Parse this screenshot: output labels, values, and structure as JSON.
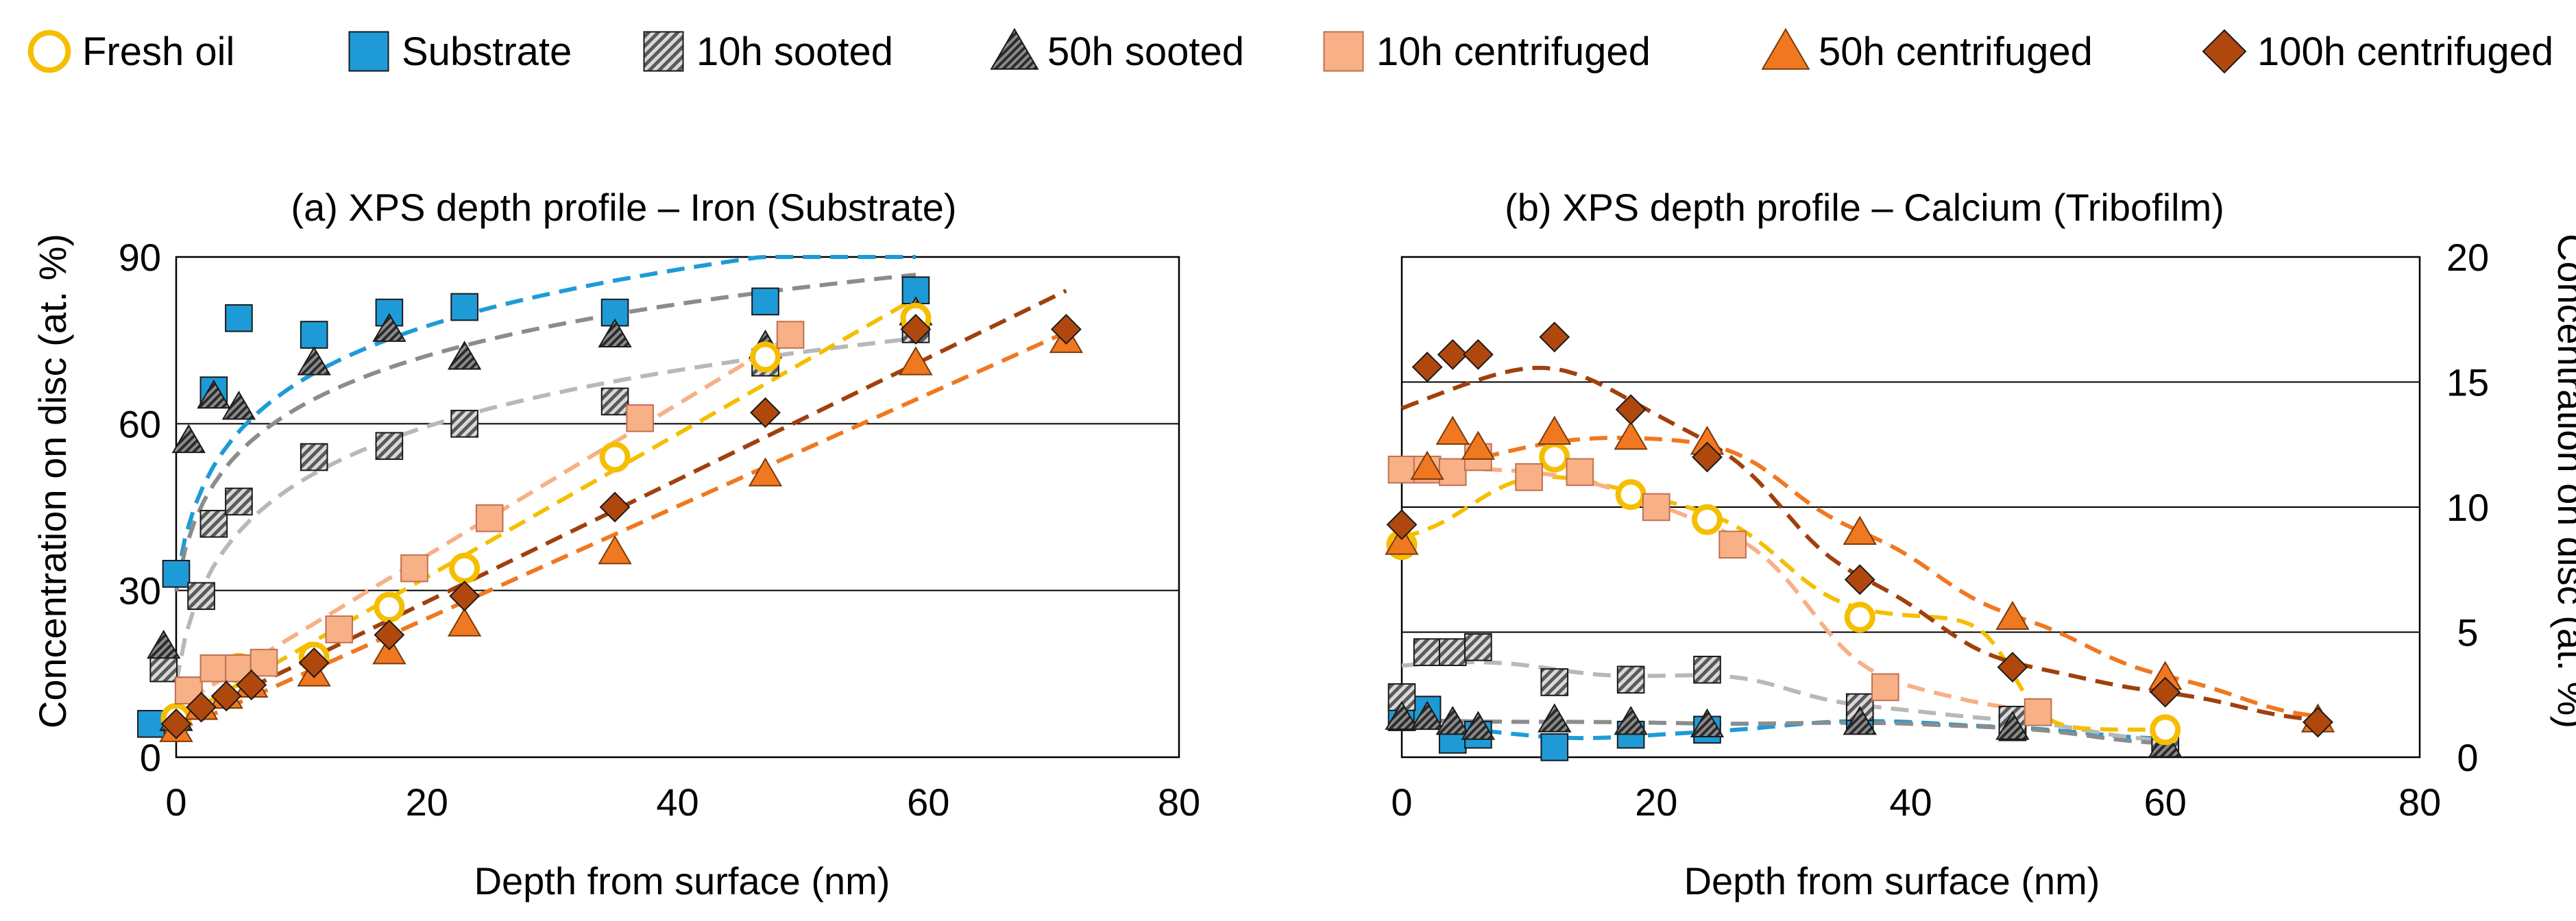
{
  "legend": [
    {
      "key": "fresh",
      "label": "Fresh oil"
    },
    {
      "key": "substrate",
      "label": "Substrate"
    },
    {
      "key": "s10",
      "label": "10h sooted"
    },
    {
      "key": "s50",
      "label": "50h sooted"
    },
    {
      "key": "c10",
      "label": "10h centrifuged"
    },
    {
      "key": "c50",
      "label": "50h centrifuged"
    },
    {
      "key": "c100",
      "label": "100h centrifuged"
    }
  ],
  "colors": {
    "fresh": "#F5BE00",
    "substrate": "#1E9BD7",
    "s10": "#6E6E6E",
    "s50": "#3C3C3C",
    "c10": "#F8B086",
    "c50": "#F07820",
    "c100": "#B0480E",
    "fit_substrate": "#1E9BD7",
    "fit_s10": "#B8B8B8",
    "fit_s50": "#8C8C8C",
    "fit_fresh": "#F5BE00",
    "fit_c10": "#F8B086",
    "fit_c50": "#F07820",
    "fit_c100": "#A0400C"
  },
  "chart_data": [
    {
      "type": "scatter",
      "title": "(a) XPS depth profile – Iron (Substrate)",
      "xlabel": "Depth from surface (nm)",
      "ylabel": "Concentration on disc (at. %)",
      "xlim": [
        0,
        80
      ],
      "ylim": [
        0,
        90
      ],
      "xticks": [
        "0",
        "20",
        "40",
        "60",
        "80"
      ],
      "yticks": [
        "0",
        "30",
        "60",
        "90"
      ],
      "grid": "horizontal",
      "series": [
        {
          "key": "substrate",
          "name": "Substrate",
          "points": [
            [
              -2,
              6
            ],
            [
              0,
              33
            ],
            [
              3,
              66
            ],
            [
              5,
              79
            ],
            [
              11,
              76
            ],
            [
              17,
              80
            ],
            [
              23,
              81
            ],
            [
              35,
              80
            ],
            [
              47,
              82
            ],
            [
              59,
              84
            ]
          ]
        },
        {
          "key": "s10",
          "name": "10h sooted",
          "points": [
            [
              -1,
              16
            ],
            [
              1,
              12
            ],
            [
              2,
              29
            ],
            [
              3,
              42
            ],
            [
              5,
              46
            ],
            [
              11,
              54
            ],
            [
              17,
              56
            ],
            [
              23,
              60
            ],
            [
              35,
              64
            ],
            [
              47,
              71
            ],
            [
              59,
              77
            ]
          ]
        },
        {
          "key": "s50",
          "name": "50h sooted",
          "points": [
            [
              -1,
              20
            ],
            [
              0,
              7
            ],
            [
              1,
              57
            ],
            [
              3,
              65
            ],
            [
              5,
              63
            ],
            [
              11,
              71
            ],
            [
              17,
              77
            ],
            [
              23,
              72
            ],
            [
              35,
              76
            ],
            [
              47,
              74
            ],
            [
              59,
              80
            ]
          ]
        },
        {
          "key": "fresh",
          "name": "Fresh oil",
          "points": [
            [
              0,
              7
            ],
            [
              5,
              16
            ],
            [
              11,
              18
            ],
            [
              17,
              27
            ],
            [
              23,
              34
            ],
            [
              35,
              54
            ],
            [
              47,
              72
            ],
            [
              59,
              79
            ]
          ]
        },
        {
          "key": "c10",
          "name": "10h centrifuged",
          "points": [
            [
              1,
              12
            ],
            [
              3,
              16
            ],
            [
              5,
              16
            ],
            [
              7,
              17
            ],
            [
              13,
              23
            ],
            [
              19,
              34
            ],
            [
              25,
              43
            ],
            [
              37,
              61
            ],
            [
              49,
              76
            ]
          ]
        },
        {
          "key": "c50",
          "name": "50h centrifuged",
          "points": [
            [
              0,
              5
            ],
            [
              2,
              9
            ],
            [
              4,
              11
            ],
            [
              6,
              13
            ],
            [
              11,
              15
            ],
            [
              17,
              19
            ],
            [
              23,
              24
            ],
            [
              35,
              37
            ],
            [
              47,
              51
            ],
            [
              59,
              71
            ],
            [
              71,
              75
            ]
          ]
        },
        {
          "key": "c100",
          "name": "100h centrifuged",
          "points": [
            [
              0,
              6
            ],
            [
              2,
              9
            ],
            [
              4,
              11
            ],
            [
              6,
              13
            ],
            [
              11,
              17
            ],
            [
              17,
              22
            ],
            [
              23,
              29
            ],
            [
              35,
              45
            ],
            [
              47,
              62
            ],
            [
              59,
              77
            ],
            [
              71,
              77
            ]
          ]
        }
      ]
    },
    {
      "type": "scatter",
      "title": "(b) XPS depth profile – Calcium (Tribofilm)",
      "xlabel": "Depth from surface (nm)",
      "ylabel": "Concentration on disc (at. %)",
      "xlim": [
        0,
        80
      ],
      "ylim": [
        0,
        20
      ],
      "xticks": [
        "0",
        "20",
        "40",
        "60",
        "80"
      ],
      "yticks": [
        "0",
        "5",
        "10",
        "15",
        "20"
      ],
      "y_axis_side": "right",
      "grid": "horizontal",
      "series": [
        {
          "key": "substrate",
          "name": "Substrate",
          "points": [
            [
              0,
              1.6
            ],
            [
              2,
              1.9
            ],
            [
              4,
              0.7
            ],
            [
              6,
              0.9
            ],
            [
              12,
              0.4
            ],
            [
              18,
              0.9
            ],
            [
              24,
              1.1
            ],
            [
              36,
              1.5
            ],
            [
              48,
              1.2
            ],
            [
              60,
              0.7
            ]
          ]
        },
        {
          "key": "s10",
          "name": "10h sooted",
          "points": [
            [
              0,
              2.4
            ],
            [
              2,
              4.2
            ],
            [
              4,
              4.2
            ],
            [
              6,
              4.4
            ],
            [
              12,
              3.0
            ],
            [
              18,
              3.1
            ],
            [
              24,
              3.5
            ],
            [
              36,
              2.0
            ],
            [
              48,
              1.5
            ],
            [
              60,
              0.6
            ]
          ]
        },
        {
          "key": "s50",
          "name": "50h sooted",
          "points": [
            [
              0,
              1.6
            ],
            [
              2,
              1.6
            ],
            [
              4,
              1.4
            ],
            [
              6,
              1.2
            ],
            [
              12,
              1.5
            ],
            [
              18,
              1.4
            ],
            [
              24,
              1.3
            ],
            [
              36,
              1.4
            ],
            [
              48,
              1.2
            ],
            [
              60,
              0.5
            ]
          ]
        },
        {
          "key": "fresh",
          "name": "Fresh oil",
          "points": [
            [
              0,
              8.5
            ],
            [
              12,
              12.0
            ],
            [
              18,
              10.5
            ],
            [
              24,
              9.5
            ],
            [
              36,
              5.6
            ],
            [
              60,
              1.1
            ]
          ]
        },
        {
          "key": "c10",
          "name": "10h centrifuged",
          "points": [
            [
              0,
              11.5
            ],
            [
              2,
              11.5
            ],
            [
              4,
              11.4
            ],
            [
              6,
              12.0
            ],
            [
              10,
              11.2
            ],
            [
              14,
              11.4
            ],
            [
              20,
              10.0
            ],
            [
              26,
              8.5
            ],
            [
              38,
              2.8
            ],
            [
              50,
              1.8
            ]
          ]
        },
        {
          "key": "c50",
          "name": "50h centrifuged",
          "points": [
            [
              0,
              8.6
            ],
            [
              2,
              11.6
            ],
            [
              4,
              13.0
            ],
            [
              6,
              12.4
            ],
            [
              12,
              13.0
            ],
            [
              18,
              12.8
            ],
            [
              24,
              12.6
            ],
            [
              36,
              9.0
            ],
            [
              48,
              5.6
            ],
            [
              60,
              3.2
            ],
            [
              72,
              1.5
            ]
          ]
        },
        {
          "key": "c100",
          "name": "100h centrifuged",
          "points": [
            [
              0,
              9.3
            ],
            [
              2,
              15.6
            ],
            [
              4,
              16.1
            ],
            [
              6,
              16.1
            ],
            [
              12,
              16.8
            ],
            [
              18,
              13.9
            ],
            [
              24,
              12.0
            ],
            [
              36,
              7.1
            ],
            [
              48,
              3.6
            ],
            [
              60,
              2.6
            ],
            [
              72,
              1.4
            ]
          ]
        }
      ]
    }
  ]
}
